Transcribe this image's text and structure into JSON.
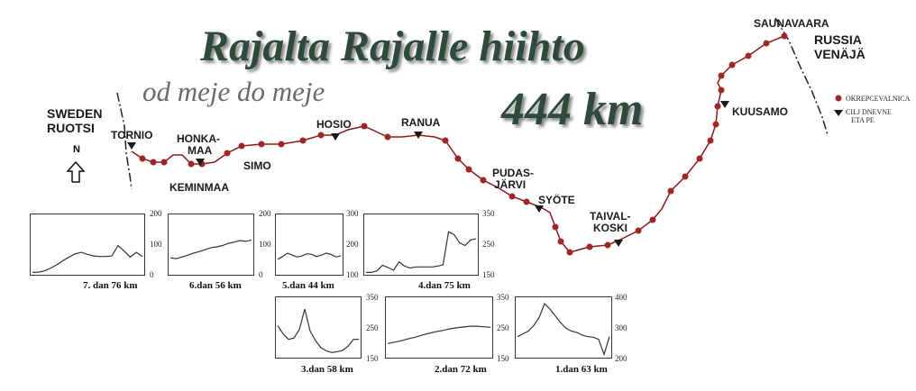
{
  "title": "Rajalta Rajalle hiihto",
  "subtitle": "od meje do meje",
  "distance": "444 km",
  "countries": {
    "sweden": [
      "SWEDEN",
      "RUOTSI"
    ],
    "russia": [
      "RUSSIA",
      "VENÄJÄ"
    ]
  },
  "north_label": "N",
  "places": {
    "tornio": "TORNIO",
    "honkamaa": [
      "HONKA-",
      "MAA"
    ],
    "keminmaa": "KEMINMAA",
    "simo": "SIMO",
    "hosio": "HOSIO",
    "ranua": "RANUA",
    "pudasjarvi": [
      "PUDAS-",
      "JÄRVI"
    ],
    "syote": "SYÖTE",
    "taivalkoski": [
      "TAIVAL-",
      "KOSKI"
    ],
    "kuusamo": "KUUSAMO",
    "saunavaara": "SAUNAVAARA"
  },
  "legend": {
    "checkpoint": "OKREPCEVALNICA",
    "stage_end": [
      "CILJ DNEVNE",
      "ETA PE"
    ]
  },
  "colors": {
    "route": "#8a1a1a",
    "checkpoint": "#a02525",
    "marker": "#1a1a1a",
    "title": "#2f4a3c",
    "arrow": "#9b2b2b"
  },
  "stages": [
    {
      "label": "7. dan 76 km",
      "ticks": [
        "200",
        "100",
        "0"
      ],
      "ymin": 0,
      "ymax": 200,
      "profile": [
        2,
        3,
        8,
        18,
        30,
        45,
        58,
        70,
        75,
        68,
        62,
        60,
        60,
        62,
        100,
        80,
        58,
        75,
        60
      ]
    },
    {
      "label": "6.dan 56 km",
      "ticks": [
        "200",
        "100",
        "0"
      ],
      "ymin": 0,
      "ymax": 200,
      "profile": [
        55,
        52,
        58,
        65,
        72,
        78,
        85,
        92,
        95,
        100,
        108,
        112,
        118,
        115,
        120
      ]
    },
    {
      "label": "5.dan 44 km",
      "ticks": [
        "300",
        "200",
        "100"
      ],
      "ymin": 100,
      "ymax": 300,
      "profile": [
        150,
        160,
        172,
        165,
        158,
        162,
        170,
        168,
        160,
        165,
        172,
        168,
        158,
        162
      ]
    },
    {
      "label": "4.dan 75 km",
      "ticks": [
        "350",
        "250",
        "150"
      ],
      "ymin": 150,
      "ymax": 350,
      "profile": [
        152,
        152,
        158,
        178,
        170,
        160,
        190,
        175,
        168,
        172,
        172,
        172,
        172,
        175,
        180,
        300,
        290,
        260,
        250,
        270,
        275
      ]
    },
    {
      "label": "3.dan 58 km",
      "ticks": [
        "350",
        "250",
        "150"
      ],
      "ymin": 150,
      "ymax": 350,
      "profile": [
        260,
        230,
        210,
        215,
        245,
        320,
        240,
        205,
        180,
        168,
        162,
        165,
        170,
        185,
        210,
        210
      ]
    },
    {
      "label": "2.dan 72 km",
      "ticks": [
        "350",
        "250",
        "150"
      ],
      "ymin": 150,
      "ymax": 350,
      "profile": [
        195,
        200,
        205,
        212,
        218,
        225,
        232,
        238,
        242,
        248,
        252,
        255,
        258,
        258,
        256,
        254
      ]
    },
    {
      "label": "1.dan 63 km",
      "ticks": [
        "400",
        "300",
        "200"
      ],
      "ymin": 200,
      "ymax": 400,
      "profile": [
        270,
        280,
        290,
        310,
        340,
        390,
        370,
        345,
        320,
        300,
        290,
        285,
        275,
        270,
        268,
        260,
        205,
        270
      ]
    }
  ]
}
